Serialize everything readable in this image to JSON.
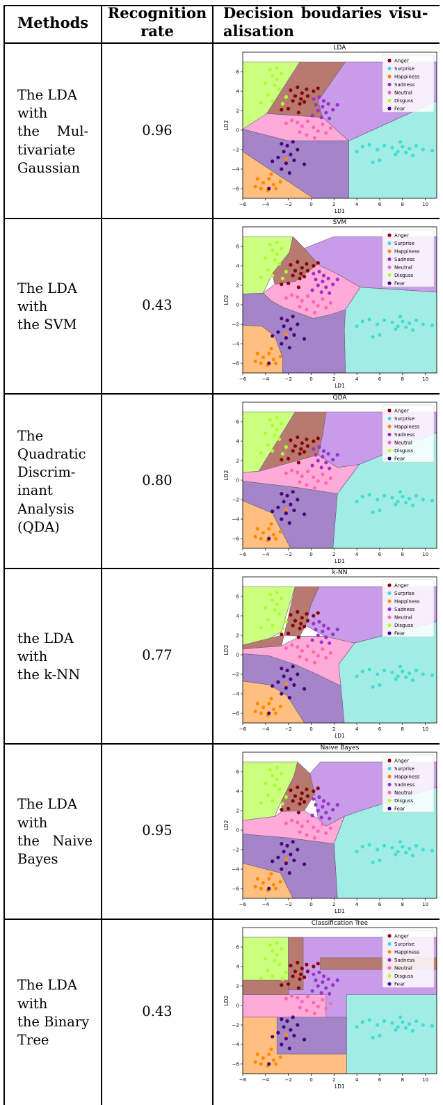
{
  "table": {
    "headers": {
      "methods": "Methods",
      "rate_line1": "Recognition",
      "rate_line2": "rate",
      "vis_line1": "Decision boudaries visu-",
      "vis_line2": "alisation"
    },
    "rows": [
      {
        "method_lines": [
          "The LDA",
          "with",
          "the    Mul-",
          "tivariate",
          "Gaussian"
        ],
        "rate": "0.96",
        "plot_title": "LDA"
      },
      {
        "method_lines": [
          "The LDA",
          "with",
          "the SVM"
        ],
        "rate": "0.43",
        "plot_title": "SVM"
      },
      {
        "method_lines": [
          "The",
          "Quadratic",
          "Discrim-",
          "inant",
          "Analysis",
          "(QDA)"
        ],
        "rate": "0.80",
        "plot_title": "QDA"
      },
      {
        "method_lines": [
          "the LDA",
          "with",
          "the k-NN"
        ],
        "rate": "0.77",
        "plot_title": "k-NN"
      },
      {
        "method_lines": [
          "The LDA",
          "with",
          "the   Naive",
          "Bayes"
        ],
        "rate": "0.95",
        "plot_title": "Naive Bayes"
      },
      {
        "method_lines": [
          "The LDA",
          "with",
          "the Binary",
          "Tree"
        ],
        "rate": "0.43",
        "plot_title": "Classification Tree"
      }
    ]
  },
  "plot": {
    "xlabel": "LD1",
    "ylabel": "LD2",
    "xticks": [
      "−6",
      "−4",
      "−2",
      "0",
      "2",
      "4",
      "6",
      "8",
      "10"
    ],
    "yticks": [
      "6",
      "4",
      "2",
      "0",
      "−2",
      "−4",
      "−6"
    ],
    "legend": [
      {
        "label": "Anger",
        "color": "#8b0000"
      },
      {
        "label": "Surprise",
        "color": "#40e0d0"
      },
      {
        "label": "Happiness",
        "color": "#ff8c00"
      },
      {
        "label": "Sadness",
        "color": "#9932cc"
      },
      {
        "label": "Neutral",
        "color": "#ff69b4"
      },
      {
        "label": "Disguss",
        "color": "#adff2f"
      },
      {
        "label": "Fear",
        "color": "#4b0082"
      }
    ]
  }
}
